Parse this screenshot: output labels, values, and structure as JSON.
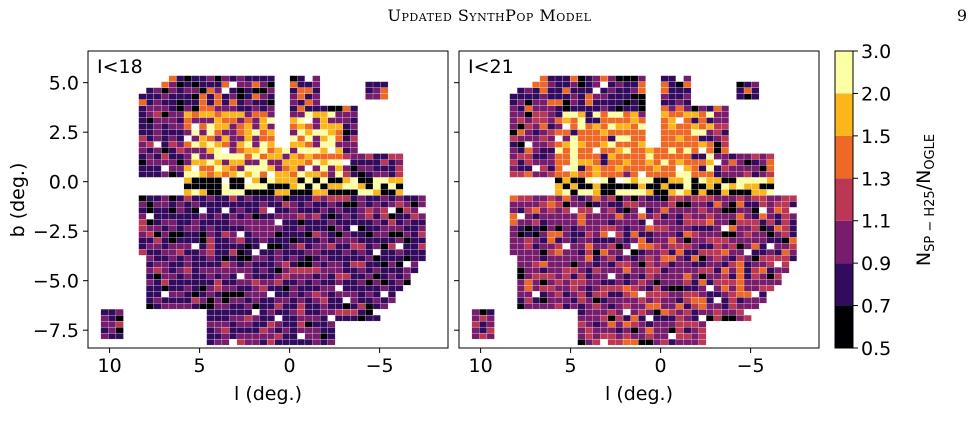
{
  "header": {
    "running_title": "Updated SynthPop Model",
    "page_number": "9"
  },
  "chart_data": {
    "type": "heatmap",
    "panels": [
      {
        "label": "I<18"
      },
      {
        "label": "I<21"
      }
    ],
    "xlabel": "l (deg.)",
    "ylabel": "b (deg.)",
    "xlim": [
      11.2,
      -8.8
    ],
    "ylim": [
      -8.4,
      6.6
    ],
    "x_inverted": true,
    "xticks": [
      10,
      5,
      0,
      -5
    ],
    "xtick_labels": [
      "10",
      "5",
      "0",
      "−5"
    ],
    "yticks": [
      5.0,
      2.5,
      0.0,
      -2.5,
      -5.0,
      -7.5
    ],
    "ytick_labels": [
      "5.0",
      "2.5",
      "0.0",
      "−2.5",
      "−5.0",
      "−7.5"
    ],
    "colorbar": {
      "label_main": "N",
      "label_sub": "SP − H25",
      "label_sep": "/N",
      "label_sub2": "OGLE",
      "boundaries": [
        0.5,
        0.7,
        0.9,
        1.1,
        1.3,
        1.5,
        2.0,
        3.0
      ],
      "tick_labels": [
        "0.5",
        "0.7",
        "0.9",
        "1.1",
        "1.3",
        "1.5",
        "2.0",
        "3.0"
      ],
      "colors": [
        "#000004",
        "#320a5e",
        "#781c6d",
        "#bc3754",
        "#ed6925",
        "#fbb61a",
        "#fcffa4"
      ]
    }
  }
}
